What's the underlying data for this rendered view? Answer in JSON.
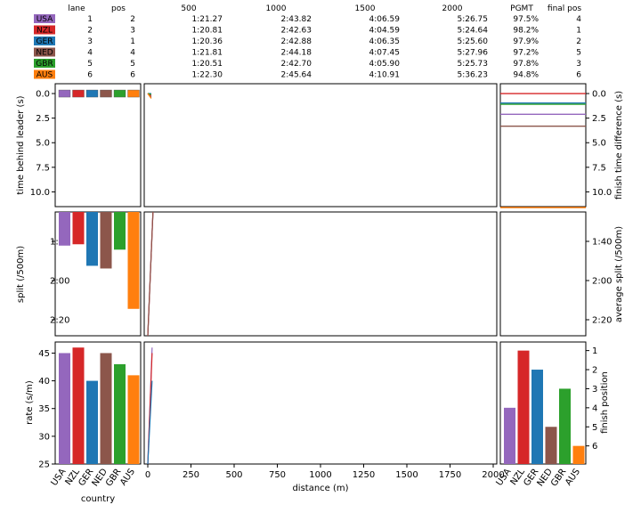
{
  "results_table": {
    "headers": [
      "lane",
      "pos",
      "500",
      "1000",
      "1500",
      "2000",
      "PGMT",
      "final pos"
    ],
    "rows": [
      {
        "country": "USA",
        "color": "#9467bd",
        "lane": "1",
        "pos": "2",
        "t500": "1:21.27",
        "t1000": "2:43.82",
        "t1500": "4:06.59",
        "t2000": "5:26.75",
        "pgmt": "97.5%",
        "final": "4"
      },
      {
        "country": "NZL",
        "color": "#d62728",
        "lane": "2",
        "pos": "3",
        "t500": "1:20.81",
        "t1000": "2:42.63",
        "t1500": "4:04.59",
        "t2000": "5:24.64",
        "pgmt": "98.2%",
        "final": "1"
      },
      {
        "country": "GER",
        "color": "#1f77b4",
        "lane": "3",
        "pos": "1",
        "t500": "1:20.36",
        "t1000": "2:42.88",
        "t1500": "4:06.35",
        "t2000": "5:25.60",
        "pgmt": "97.9%",
        "final": "2"
      },
      {
        "country": "NED",
        "color": "#8c564b",
        "lane": "4",
        "pos": "4",
        "t500": "1:21.81",
        "t1000": "2:44.18",
        "t1500": "4:07.45",
        "t2000": "5:27.96",
        "pgmt": "97.2%",
        "final": "5"
      },
      {
        "country": "GBR",
        "color": "#2ca02c",
        "lane": "5",
        "pos": "5",
        "t500": "1:20.51",
        "t1000": "2:42.70",
        "t1500": "4:05.90",
        "t2000": "5:25.73",
        "pgmt": "97.8%",
        "final": "3"
      },
      {
        "country": "AUS",
        "color": "#ff7f0e",
        "lane": "6",
        "pos": "6",
        "t500": "1:22.30",
        "t1000": "2:45.64",
        "t1500": "4:10.91",
        "t2000": "5:36.23",
        "pgmt": "94.8%",
        "final": "6"
      }
    ]
  },
  "labels": {
    "left_top_y": "time behind leader (s)",
    "left_mid_y": "split (/500m)",
    "left_bot_y": "rate (s/m)",
    "right_top_y": "finish time difference (s)",
    "right_mid_y": "average split (/500m)",
    "right_bot_y": "finish position",
    "x_center": "distance (m)",
    "x_left": "country"
  },
  "chart_data": [
    {
      "type": "bar",
      "title": "",
      "ylabel": "time behind leader (s)",
      "categories": [
        "USA",
        "NZL",
        "GER",
        "NED",
        "GBR",
        "AUS"
      ],
      "values": [
        0.0,
        0.0,
        0.0,
        0.0,
        0.0,
        0.0
      ],
      "ylim": [
        11.5,
        -1.0
      ],
      "yticks": [
        "0.0",
        "2.5",
        "5.0",
        "7.5",
        "10.0"
      ],
      "note_flags": true
    },
    {
      "type": "line",
      "ylabel": "time behind leader (s)",
      "xlabel": "distance (m)",
      "xlim": [
        0,
        2000
      ],
      "xticks": [
        "0",
        "250",
        "500",
        "750",
        "1000",
        "1250",
        "1500",
        "1750",
        "2000"
      ],
      "ylim": [
        11.5,
        -1.0
      ],
      "series": [
        {
          "color": "#9467bd",
          "x": [
            0,
            20
          ],
          "y": [
            0.0,
            0.3
          ]
        },
        {
          "color": "#d62728",
          "x": [
            0,
            20
          ],
          "y": [
            0.0,
            0.2
          ]
        },
        {
          "color": "#1f77b4",
          "x": [
            0,
            20
          ],
          "y": [
            0.0,
            0.0
          ]
        },
        {
          "color": "#8c564b",
          "x": [
            0,
            20
          ],
          "y": [
            0.0,
            0.4
          ]
        },
        {
          "color": "#2ca02c",
          "x": [
            0,
            20
          ],
          "y": [
            0.0,
            0.1
          ]
        },
        {
          "color": "#ff7f0e",
          "x": [
            0,
            20
          ],
          "y": [
            0.0,
            0.5
          ]
        }
      ]
    },
    {
      "type": "line",
      "ylabel": "finish time difference (s)",
      "ylim": [
        11.5,
        -1.0
      ],
      "yticks": [
        "0.0",
        "2.5",
        "5.0",
        "7.5",
        "10.0"
      ],
      "hlines": [
        {
          "color": "#d62728",
          "y": 0.0
        },
        {
          "color": "#1f77b4",
          "y": 0.96
        },
        {
          "color": "#2ca02c",
          "y": 1.09
        },
        {
          "color": "#9467bd",
          "y": 2.11
        },
        {
          "color": "#8c564b",
          "y": 3.32
        },
        {
          "color": "#ff7f0e",
          "y": 11.59
        }
      ]
    },
    {
      "type": "bar",
      "ylabel": "split (/500m)",
      "categories": [
        "USA",
        "NZL",
        "GER",
        "NED",
        "GBR",
        "AUS"
      ],
      "values_seconds": [
        80.3,
        80.2,
        81.8,
        82.0,
        80.6,
        85.0
      ],
      "ylim": [
        87.0,
        77.8
      ],
      "yticks": [
        "1:40",
        "2:00",
        "2:20"
      ]
    },
    {
      "type": "line",
      "ylabel": "split (/500m)",
      "xlim": [
        0,
        2000
      ],
      "ylim": [
        145.0,
        82.0
      ],
      "series": [
        {
          "color": "#9467bd",
          "x": [
            0,
            30
          ],
          "y": [
            145,
            82
          ]
        },
        {
          "color": "#d62728",
          "x": [
            0,
            30
          ],
          "y": [
            145,
            82
          ]
        },
        {
          "color": "#8c564b",
          "x": [
            0,
            30
          ],
          "y": [
            145,
            82
          ]
        }
      ]
    },
    {
      "type": "line",
      "ylabel": "average split (/500m)",
      "yticks": [
        "1:40",
        "2:00",
        "2:20"
      ]
    },
    {
      "type": "bar",
      "ylabel": "rate (s/m)",
      "categories": [
        "USA",
        "NZL",
        "GER",
        "NED",
        "GBR",
        "AUS"
      ],
      "values": [
        45,
        46,
        40,
        45,
        43,
        41
      ],
      "ylim": [
        25,
        47
      ],
      "yticks": [
        "25",
        "30",
        "35",
        "40",
        "45"
      ]
    },
    {
      "type": "line",
      "ylabel": "rate (s/m)",
      "xlim": [
        0,
        2000
      ],
      "ylim": [
        25,
        47
      ],
      "series": [
        {
          "color": "#9467bd",
          "x": [
            0,
            25
          ],
          "y": [
            25,
            46
          ]
        },
        {
          "color": "#d62728",
          "x": [
            0,
            25
          ],
          "y": [
            25,
            45
          ]
        },
        {
          "color": "#1f77b4",
          "x": [
            0,
            25
          ],
          "y": [
            25,
            40
          ]
        }
      ]
    },
    {
      "type": "bar",
      "ylabel": "finish position",
      "categories": [
        "USA",
        "NZL",
        "GER",
        "NED",
        "GBR",
        "AUS"
      ],
      "values": [
        4,
        1,
        2,
        5,
        3,
        6
      ],
      "ylim": [
        6.95,
        0.55
      ],
      "yticks": [
        "1",
        "2",
        "3",
        "4",
        "5",
        "6"
      ]
    }
  ]
}
